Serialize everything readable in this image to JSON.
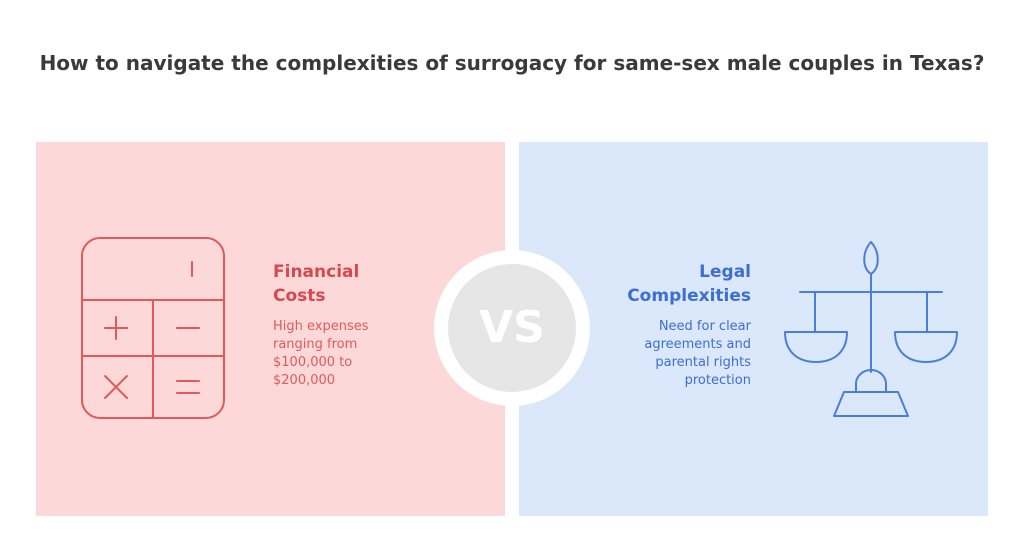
{
  "title": "How to navigate the complexities of surrogacy for same-sex male couples in Texas?",
  "vs_label": "VS",
  "left": {
    "heading": "Financial Costs",
    "description": "High expenses ranging from $100,000 to $200,000"
  },
  "right": {
    "heading": "Legal Complexities",
    "description": "Need for clear agreements and parental rights protection"
  }
}
